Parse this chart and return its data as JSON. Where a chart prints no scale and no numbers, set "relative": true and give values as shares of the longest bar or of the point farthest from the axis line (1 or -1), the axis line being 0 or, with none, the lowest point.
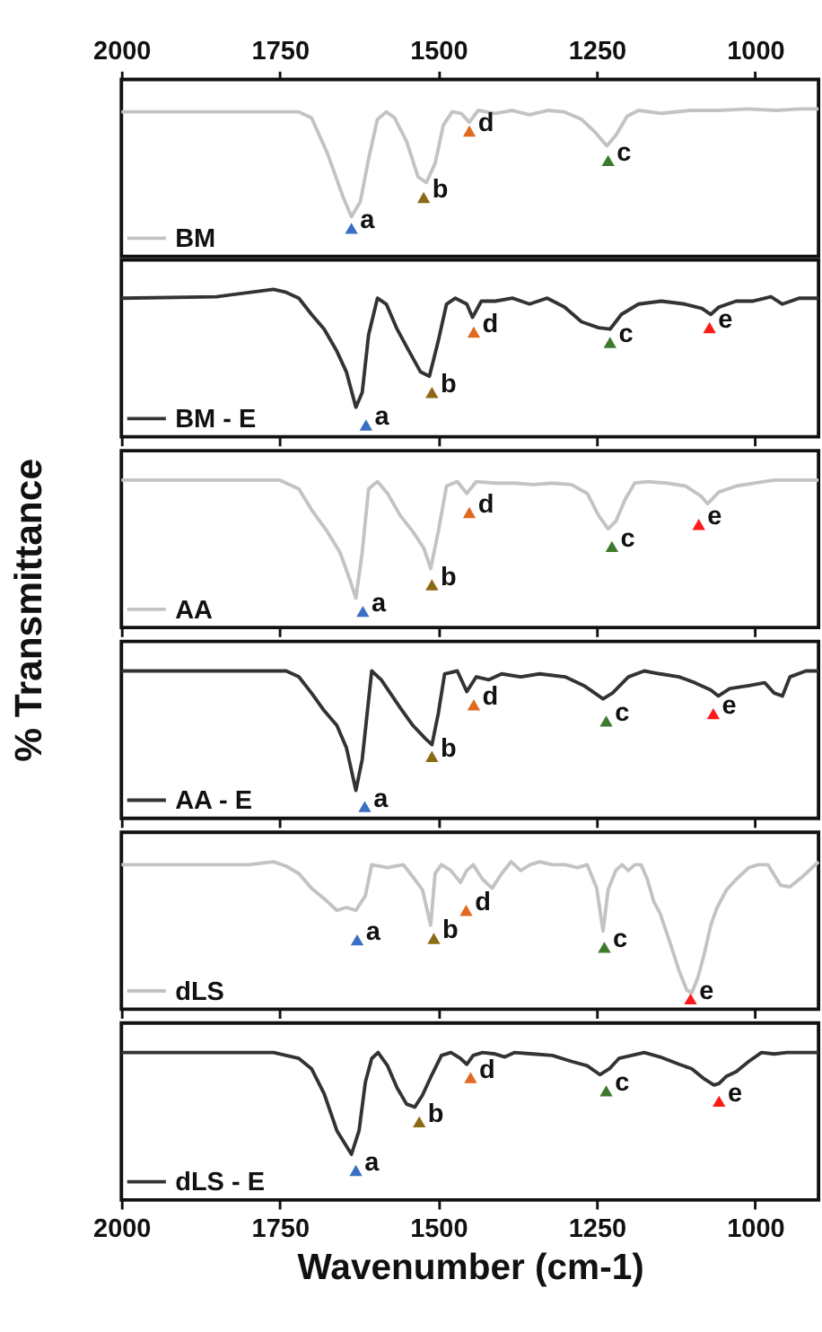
{
  "chart_data": [
    {
      "type": "line",
      "relative": true,
      "ylabel": "% Transmittance",
      "xlim": [
        2000,
        900
      ],
      "xticks": [
        2000,
        1750,
        1500,
        1250,
        1000
      ],
      "tick_labels": "x",
      "grid": false,
      "legend": "bottom left",
      "x": [
        2000,
        1720,
        1700,
        1675,
        1650,
        1637,
        1623,
        1610,
        1596,
        1582,
        1569,
        1550,
        1532,
        1519,
        1505,
        1492,
        1478,
        1464,
        1451,
        1437,
        1410,
        1383,
        1356,
        1328,
        1301,
        1274,
        1252,
        1234,
        1220,
        1202,
        1184,
        1148,
        1102,
        1057,
        1012,
        966,
        930,
        900
      ],
      "series": [
        {
          "name": "BM",
          "color": "#c3c3c3",
          "values": [
            0.98,
            0.98,
            0.94,
            0.7,
            0.4,
            0.27,
            0.37,
            0.66,
            0.93,
            0.98,
            0.94,
            0.78,
            0.54,
            0.5,
            0.63,
            0.89,
            0.98,
            0.97,
            0.91,
            0.99,
            0.97,
            0.99,
            0.96,
            0.99,
            0.98,
            0.93,
            0.84,
            0.75,
            0.82,
            0.95,
            0.99,
            0.97,
            0.99,
            0.99,
            1.0,
            0.99,
            1.0,
            1.0
          ]
        }
      ],
      "annotations": [
        {
          "text": "a",
          "x": 1637,
          "y": 0.19
        },
        {
          "text": "b",
          "x": 1523,
          "y": 0.4
        },
        {
          "text": "c",
          "x": 1232,
          "y": 0.65
        },
        {
          "text": "d",
          "x": 1451,
          "y": 0.85
        }
      ]
    },
    {
      "type": "line",
      "relative": true,
      "xlim": [
        2000,
        900
      ],
      "xticks": [
        2000,
        1750,
        1500,
        1250,
        1000
      ],
      "tick_labels": false,
      "grid": false,
      "legend": "bottom left",
      "x": [
        2000,
        1850,
        1760,
        1740,
        1720,
        1700,
        1680,
        1660,
        1645,
        1630,
        1620,
        1610,
        1596,
        1582,
        1565,
        1546,
        1528,
        1514,
        1500,
        1487,
        1473,
        1455,
        1446,
        1432,
        1410,
        1383,
        1356,
        1328,
        1301,
        1274,
        1247,
        1229,
        1211,
        1184,
        1148,
        1111,
        1084,
        1070,
        1057,
        1030,
        1003,
        975,
        957,
        930,
        900
      ],
      "series": [
        {
          "name": "BM - E",
          "color": "#333333",
          "values": [
            0.94,
            0.95,
            1.0,
            0.98,
            0.94,
            0.83,
            0.73,
            0.58,
            0.44,
            0.2,
            0.3,
            0.69,
            0.94,
            0.9,
            0.73,
            0.58,
            0.44,
            0.41,
            0.65,
            0.9,
            0.94,
            0.9,
            0.81,
            0.92,
            0.92,
            0.94,
            0.9,
            0.94,
            0.88,
            0.78,
            0.74,
            0.73,
            0.83,
            0.9,
            0.92,
            0.9,
            0.87,
            0.83,
            0.88,
            0.92,
            0.92,
            0.95,
            0.9,
            0.94,
            0.94
          ]
        }
      ],
      "annotations": [
        {
          "text": "a",
          "x": 1614,
          "y": 0.08
        },
        {
          "text": "b",
          "x": 1510,
          "y": 0.3
        },
        {
          "text": "c",
          "x": 1229,
          "y": 0.64
        },
        {
          "text": "d",
          "x": 1444,
          "y": 0.71
        },
        {
          "text": "e",
          "x": 1072,
          "y": 0.74
        }
      ]
    },
    {
      "type": "line",
      "relative": true,
      "xlim": [
        2000,
        900
      ],
      "xticks": [
        2000,
        1750,
        1500,
        1250,
        1000
      ],
      "tick_labels": false,
      "grid": false,
      "legend": "bottom left",
      "x": [
        2000,
        1750,
        1720,
        1700,
        1675,
        1655,
        1640,
        1630,
        1620,
        1610,
        1596,
        1580,
        1560,
        1540,
        1523,
        1512,
        1500,
        1487,
        1470,
        1455,
        1440,
        1410,
        1380,
        1350,
        1320,
        1290,
        1265,
        1247,
        1232,
        1220,
        1205,
        1190,
        1170,
        1140,
        1110,
        1085,
        1075,
        1057,
        1030,
        1000,
        970,
        930,
        900
      ],
      "series": [
        {
          "name": "AA",
          "color": "#c3c3c3",
          "values": [
            1.0,
            1.0,
            0.94,
            0.8,
            0.65,
            0.51,
            0.33,
            0.2,
            0.51,
            0.94,
            0.99,
            0.91,
            0.76,
            0.65,
            0.54,
            0.4,
            0.65,
            0.96,
            0.99,
            0.91,
            0.99,
            0.98,
            0.98,
            0.97,
            0.98,
            0.97,
            0.91,
            0.76,
            0.67,
            0.72,
            0.87,
            0.98,
            0.99,
            0.98,
            0.96,
            0.89,
            0.84,
            0.92,
            0.96,
            0.98,
            1.0,
            1.0,
            1.0
          ]
        }
      ],
      "annotations": [
        {
          "text": "a",
          "x": 1619,
          "y": 0.11
        },
        {
          "text": "b",
          "x": 1510,
          "y": 0.29
        },
        {
          "text": "c",
          "x": 1226,
          "y": 0.55
        },
        {
          "text": "d",
          "x": 1451,
          "y": 0.78
        },
        {
          "text": "e",
          "x": 1089,
          "y": 0.7
        }
      ]
    },
    {
      "type": "line",
      "relative": true,
      "xlim": [
        2000,
        900
      ],
      "xticks": [
        2000,
        1750,
        1500,
        1250,
        1000
      ],
      "tick_labels": false,
      "grid": false,
      "legend": "bottom left",
      "x": [
        2000,
        1760,
        1740,
        1720,
        1700,
        1680,
        1660,
        1645,
        1630,
        1620,
        1605,
        1590,
        1560,
        1540,
        1520,
        1510,
        1500,
        1490,
        1470,
        1455,
        1440,
        1420,
        1400,
        1370,
        1340,
        1300,
        1270,
        1240,
        1225,
        1200,
        1175,
        1150,
        1120,
        1095,
        1070,
        1058,
        1040,
        1010,
        985,
        970,
        957,
        945,
        920,
        900
      ],
      "series": [
        {
          "name": "AA - E",
          "color": "#333333",
          "values": [
            1.0,
            1.0,
            1.0,
            0.96,
            0.85,
            0.73,
            0.63,
            0.48,
            0.19,
            0.4,
            1.0,
            0.94,
            0.75,
            0.63,
            0.54,
            0.5,
            0.71,
            0.98,
            1.0,
            0.86,
            0.96,
            0.94,
            0.98,
            0.96,
            0.98,
            0.96,
            0.9,
            0.81,
            0.85,
            0.96,
            1.0,
            0.98,
            0.96,
            0.92,
            0.87,
            0.83,
            0.88,
            0.9,
            0.92,
            0.85,
            0.83,
            0.96,
            1.0,
            1.0
          ]
        }
      ],
      "annotations": [
        {
          "text": "a",
          "x": 1616,
          "y": 0.08
        },
        {
          "text": "b",
          "x": 1510,
          "y": 0.42
        },
        {
          "text": "c",
          "x": 1235,
          "y": 0.66
        },
        {
          "text": "d",
          "x": 1444,
          "y": 0.77
        },
        {
          "text": "e",
          "x": 1066,
          "y": 0.71
        }
      ]
    },
    {
      "type": "line",
      "relative": true,
      "xlim": [
        2000,
        900
      ],
      "xticks": [
        2000,
        1750,
        1500,
        1250,
        1000
      ],
      "tick_labels": false,
      "grid": false,
      "legend": "bottom left",
      "x": [
        2000,
        1800,
        1760,
        1740,
        1720,
        1700,
        1680,
        1660,
        1645,
        1630,
        1615,
        1605,
        1580,
        1555,
        1537,
        1525,
        1512,
        1505,
        1495,
        1480,
        1465,
        1455,
        1445,
        1430,
        1415,
        1400,
        1385,
        1370,
        1355,
        1340,
        1320,
        1300,
        1280,
        1265,
        1250,
        1240,
        1232,
        1220,
        1210,
        1200,
        1190,
        1180,
        1170,
        1160,
        1150,
        1135,
        1120,
        1108,
        1100,
        1090,
        1080,
        1070,
        1060,
        1045,
        1030,
        1010,
        995,
        980,
        960,
        945,
        925,
        900
      ],
      "series": [
        {
          "name": "dLS",
          "color": "#c3c3c3",
          "values": [
            0.98,
            0.98,
            1.0,
            0.97,
            0.92,
            0.82,
            0.75,
            0.67,
            0.69,
            0.67,
            0.77,
            0.98,
            0.96,
            0.98,
            0.88,
            0.81,
            0.57,
            0.92,
            0.98,
            0.94,
            0.86,
            0.94,
            0.98,
            0.88,
            0.82,
            0.92,
            1.0,
            0.94,
            0.98,
            1.0,
            0.98,
            0.98,
            0.96,
            0.98,
            0.82,
            0.53,
            0.81,
            0.94,
            0.98,
            0.94,
            0.98,
            0.98,
            0.88,
            0.73,
            0.65,
            0.46,
            0.26,
            0.13,
            0.11,
            0.22,
            0.38,
            0.57,
            0.69,
            0.81,
            0.88,
            0.96,
            0.98,
            0.98,
            0.84,
            0.83,
            0.9,
            1.0
          ]
        }
      ],
      "annotations": [
        {
          "text": "a",
          "x": 1628,
          "y": 0.47
        },
        {
          "text": "b",
          "x": 1507,
          "y": 0.48
        },
        {
          "text": "c",
          "x": 1238,
          "y": 0.42
        },
        {
          "text": "d",
          "x": 1456,
          "y": 0.67
        },
        {
          "text": "e",
          "x": 1102,
          "y": 0.07
        }
      ]
    },
    {
      "type": "line",
      "relative": true,
      "xlabel": "Wavenumber (cm-1)",
      "xlim": [
        2000,
        900
      ],
      "xticks": [
        2000,
        1750,
        1500,
        1250,
        1000
      ],
      "tick_labels": "x",
      "grid": false,
      "legend": "bottom left",
      "x": [
        2000,
        1760,
        1740,
        1720,
        1700,
        1680,
        1660,
        1637,
        1625,
        1615,
        1605,
        1595,
        1580,
        1565,
        1550,
        1537,
        1525,
        1510,
        1495,
        1480,
        1465,
        1455,
        1445,
        1430,
        1410,
        1395,
        1380,
        1350,
        1320,
        1290,
        1265,
        1245,
        1230,
        1215,
        1195,
        1175,
        1150,
        1120,
        1100,
        1080,
        1065,
        1057,
        1045,
        1030,
        1010,
        990,
        970,
        950,
        930,
        900
      ],
      "series": [
        {
          "name": "dLS - E",
          "color": "#333333",
          "values": [
            1.0,
            1.0,
            0.98,
            0.96,
            0.89,
            0.72,
            0.47,
            0.31,
            0.47,
            0.8,
            0.96,
            1.0,
            0.91,
            0.76,
            0.65,
            0.63,
            0.71,
            0.85,
            0.98,
            1.0,
            0.96,
            0.92,
            0.98,
            1.0,
            0.99,
            0.97,
            1.0,
            0.99,
            0.98,
            0.94,
            0.91,
            0.85,
            0.89,
            0.96,
            0.98,
            1.0,
            0.97,
            0.92,
            0.89,
            0.82,
            0.78,
            0.79,
            0.84,
            0.87,
            0.94,
            1.0,
            0.99,
            1.0,
            1.0,
            1.0
          ]
        }
      ],
      "annotations": [
        {
          "text": "a",
          "x": 1630,
          "y": 0.2
        },
        {
          "text": "b",
          "x": 1530,
          "y": 0.53
        },
        {
          "text": "c",
          "x": 1235,
          "y": 0.74
        },
        {
          "text": "d",
          "x": 1449,
          "y": 0.83
        },
        {
          "text": "e",
          "x": 1057,
          "y": 0.67
        }
      ]
    }
  ]
}
